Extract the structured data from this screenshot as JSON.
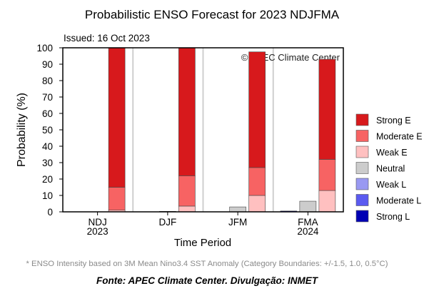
{
  "chart_data": {
    "type": "bar",
    "stacked": true,
    "title": "Probabilistic ENSO Forecast for 2023 NDJFMA",
    "subtitle": "Issued: 16 Oct 2023",
    "watermark": "© APEC Climate Center",
    "xlabel": "Time Period",
    "ylabel": "Probability (%)",
    "ylim": [
      0,
      100
    ],
    "yticks": [
      0,
      10,
      20,
      30,
      40,
      50,
      60,
      70,
      80,
      90,
      100
    ],
    "categories": [
      {
        "line1": "NDJ",
        "line2": "2023"
      },
      {
        "line1": "DJF",
        "line2": ""
      },
      {
        "line1": "JFM",
        "line2": ""
      },
      {
        "line1": "FMA",
        "line2": "2024"
      }
    ],
    "legend_position": "right",
    "series": [
      {
        "name": "Strong E",
        "group": "elnino",
        "color": "#d7191c",
        "values": [
          85,
          78,
          70.5,
          61
        ]
      },
      {
        "name": "Moderate E",
        "group": "elnino",
        "color": "#f76363",
        "values": [
          14,
          18.5,
          17,
          19
        ]
      },
      {
        "name": "Weak E",
        "group": "elnino",
        "color": "#ffc0c0",
        "values": [
          1,
          3.5,
          10,
          13
        ]
      },
      {
        "name": "Neutral",
        "group": "neutral",
        "color": "#cccccc",
        "values": [
          0,
          0.3,
          3,
          6.5
        ]
      },
      {
        "name": "Weak L",
        "group": "lanina",
        "color": "#9999f2",
        "values": [
          0,
          0,
          0,
          0
        ]
      },
      {
        "name": "Moderate L",
        "group": "lanina",
        "color": "#5a5af0",
        "values": [
          0,
          0,
          0,
          0
        ]
      },
      {
        "name": "Strong L",
        "group": "lanina",
        "color": "#0000b4",
        "values": [
          0,
          0,
          0,
          0.5
        ]
      }
    ]
  },
  "footnote": "* ENSO Intensity based on 3M Mean Nino3.4 SST Anomaly (Category Boundaries: +/-1.5, 1.0, 0.5°C)",
  "source": "Fonte: APEC Climate Center. Divulgação: INMET"
}
